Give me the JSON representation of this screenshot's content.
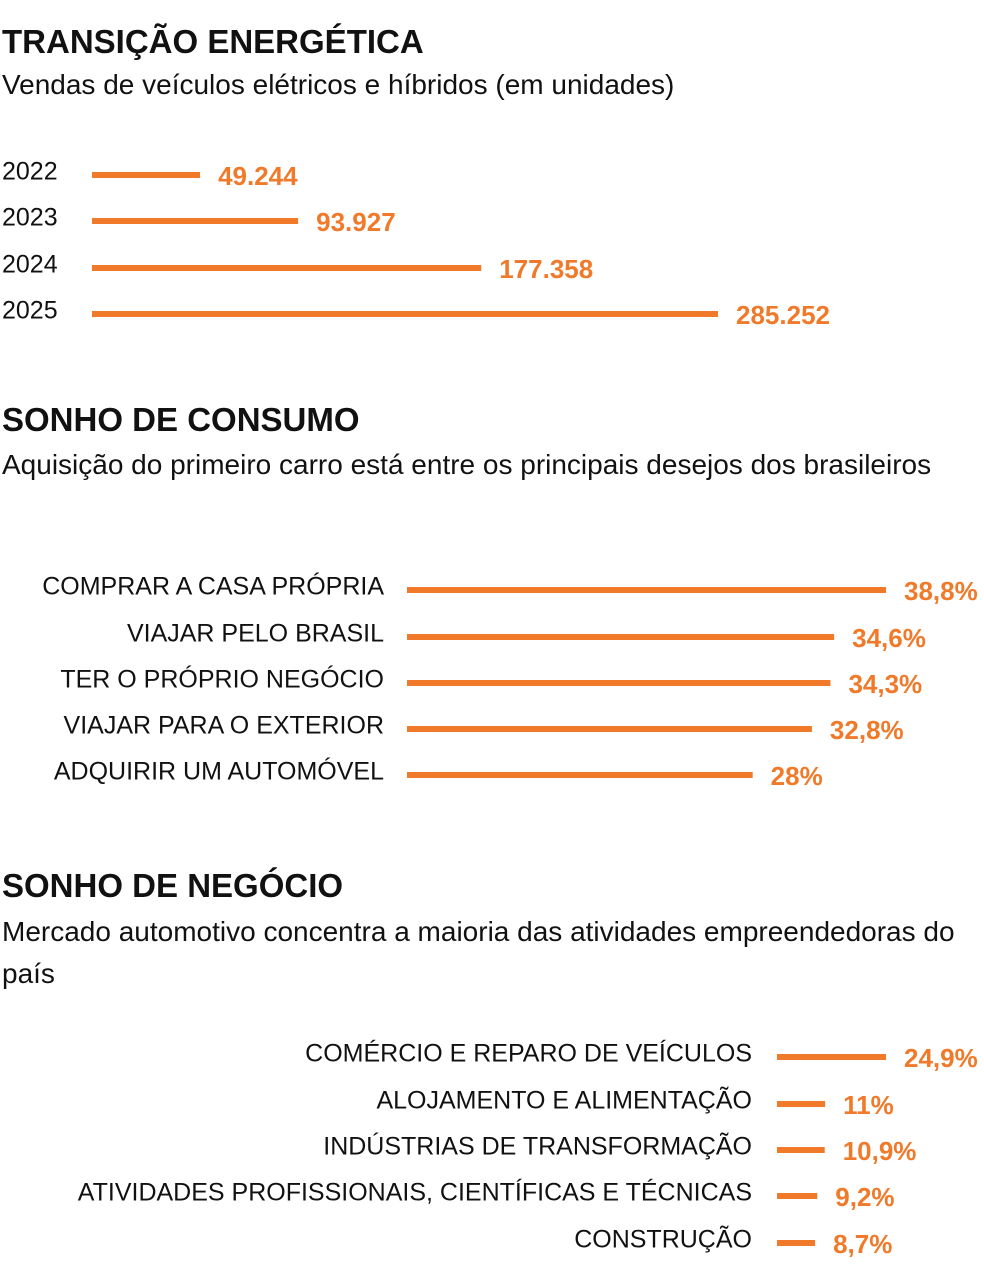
{
  "chart_data": [
    {
      "type": "bar",
      "orientation": "horizontal",
      "title": "TRANSIÇÃO ENERGÉTICA",
      "subtitle": "Vendas de veículos elétricos e híbridos (em unidades)",
      "categories": [
        "2022",
        "2023",
        "2024",
        "2025"
      ],
      "values": [
        49244,
        93927,
        177358,
        285252
      ],
      "value_labels": [
        "49.244",
        "93.927",
        "177.358",
        "285.252"
      ],
      "color": "#f07a2a"
    },
    {
      "type": "bar",
      "orientation": "horizontal",
      "title": "SONHO DE CONSUMO",
      "subtitle": "Aquisição do primeiro carro está entre os principais desejos dos brasileiros",
      "categories": [
        "COMPRAR A CASA PRÓPRIA",
        "VIAJAR PELO BRASIL",
        "TER O PRÓPRIO NEGÓCIO",
        "VIAJAR PARA O EXTERIOR",
        "ADQUIRIR UM AUTOMÓVEL"
      ],
      "values": [
        38.8,
        34.6,
        34.3,
        32.8,
        28
      ],
      "value_labels": [
        "38,8%",
        "34,6%",
        "34,3%",
        "32,8%",
        "28%"
      ],
      "color": "#f07a2a"
    },
    {
      "type": "bar",
      "orientation": "horizontal",
      "title": "SONHO DE NEGÓCIO",
      "subtitle": "Mercado automotivo concentra a maioria das atividades empreendedoras do país",
      "categories": [
        "COMÉRCIO E REPARO DE VEÍCULOS",
        "ALOJAMENTO E ALIMENTAÇÃO",
        "INDÚSTRIAS DE TRANSFORMAÇÃO",
        "ATIVIDADES PROFISSIONAIS, CIENTÍFICAS E TÉCNICAS",
        "CONSTRUÇÃO"
      ],
      "values": [
        24.9,
        11,
        10.9,
        9.2,
        8.7
      ],
      "value_labels": [
        "24,9%",
        "11%",
        "10,9%",
        "9,2%",
        "8,7%"
      ],
      "color": "#f07a2a"
    }
  ]
}
